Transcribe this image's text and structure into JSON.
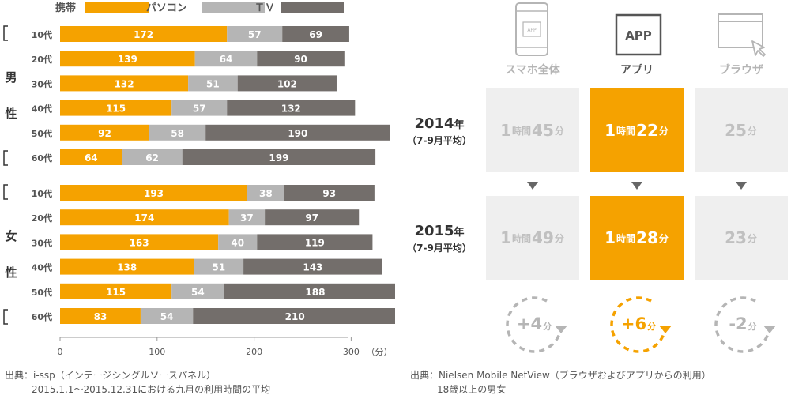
{
  "chart_data": [
    {
      "type": "bar",
      "stacked": true,
      "orientation": "horizontal",
      "legend": [
        "携帯",
        "パソコン",
        "ＴＶ"
      ],
      "legend_position": "top",
      "colors": {
        "携帯": "#f5a200",
        "パソコン": "#b5b5b5",
        "ＴＶ": "#736e6b"
      },
      "groups": [
        {
          "label": [
            "男",
            "性"
          ],
          "categories": [
            "10代",
            "20代",
            "30代",
            "40代",
            "50代",
            "60代"
          ]
        },
        {
          "label": [
            "女",
            "性"
          ],
          "categories": [
            "10代",
            "20代",
            "30代",
            "40代",
            "50代",
            "60代"
          ]
        }
      ],
      "series": [
        {
          "name": "携帯",
          "values": [
            172,
            139,
            132,
            115,
            92,
            64,
            193,
            174,
            163,
            138,
            115,
            83
          ]
        },
        {
          "name": "パソコン",
          "values": [
            57,
            64,
            51,
            57,
            58,
            62,
            38,
            37,
            40,
            51,
            54,
            54
          ]
        },
        {
          "name": "ＴＶ",
          "values": [
            69,
            90,
            102,
            132,
            190,
            199,
            93,
            97,
            119,
            143,
            188,
            210
          ]
        }
      ],
      "xticks": [
        "0",
        "100",
        "200",
        "300"
      ],
      "xunit": "（分）",
      "xlim": [
        0,
        340
      ]
    },
    {
      "type": "table",
      "columns": [
        "スマホ全体",
        "アプリ",
        "ブラウザ"
      ],
      "column_icons": [
        "smartphone-icon",
        "app-icon",
        "browser-icon"
      ],
      "highlight_column": 1,
      "rows": [
        {
          "year": "2014",
          "year_unit": "年",
          "period": "（7-9月平均）",
          "cells": [
            {
              "h": "1",
              "m": "45"
            },
            {
              "h": "1",
              "m": "22"
            },
            {
              "h": "",
              "m": "25"
            }
          ]
        },
        {
          "year": "2015",
          "year_unit": "年",
          "period": "（7-9月平均）",
          "cells": [
            {
              "h": "1",
              "m": "49"
            },
            {
              "h": "1",
              "m": "28"
            },
            {
              "h": "",
              "m": "23"
            }
          ]
        }
      ],
      "hour_unit": "時間",
      "minute_unit": "分",
      "app_icon_label": "APP",
      "phone_icon_label": "APP",
      "deltas": [
        {
          "value": "+4",
          "unit": "分"
        },
        {
          "value": "+6",
          "unit": "分"
        },
        {
          "value": "-2",
          "unit": "分"
        }
      ]
    }
  ],
  "sources": {
    "left": {
      "line1": "出典：i-ssp（インテージシングルソースパネル）",
      "line2": "2015.1.1〜2015.12.31における九月の利用時間の平均"
    },
    "right": {
      "line1": "出典：Nielsen Mobile NetView（ブラウザおよびアプリからの利用）",
      "line2": "18歳以上の男女"
    }
  },
  "colors": {
    "accent": "#f5a200",
    "light_gray": "#b5b5b5",
    "dark_gray": "#736e6b",
    "cell_bg": "#efefef"
  }
}
